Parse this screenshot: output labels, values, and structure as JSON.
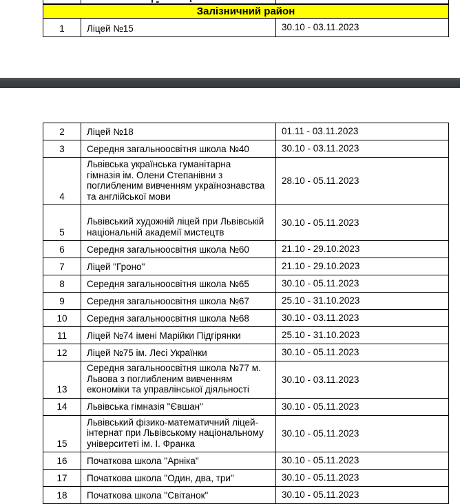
{
  "district": {
    "header": "Залізничний район"
  },
  "page1_rows": [
    {
      "num": "1",
      "name": "Ліцей №15",
      "dates": "30.10 - 03.11.2023"
    }
  ],
  "page2_rows": [
    {
      "num": "2",
      "name": "Ліцей №18",
      "dates": "01.11 - 03.11.2023"
    },
    {
      "num": "3",
      "name": "Середня загальноосвітня школа №40",
      "dates": "30.10 - 03.11.2023"
    },
    {
      "num": "4",
      "name": "Львівська українська гуманітарна гімназія ім. Олени Степанівни з поглибленим вивченням українознавства та англійської мови",
      "dates": "28.10 - 05.11.2023"
    },
    {
      "num": "5",
      "name": "Львівський художній ліцей при Львівській національній академії мистецтв",
      "dates": "30.10 - 05.11.2023"
    },
    {
      "num": "6",
      "name": "Середня загальноосвітня школа №60",
      "dates": "21.10 - 29.10.2023"
    },
    {
      "num": "7",
      "name": "Ліцей \"Гроно\"",
      "dates": "21.10 - 29.10.2023"
    },
    {
      "num": "8",
      "name": "Середня загальноосвітня школа №65",
      "dates": "30.10 - 05.11.2023"
    },
    {
      "num": "9",
      "name": "Середня загальноосвітня школа №67",
      "dates": "25.10 - 31.10.2023"
    },
    {
      "num": "10",
      "name": "Середня загальноосвітня школа №68",
      "dates": "30.10 - 03.11.2023"
    },
    {
      "num": "11",
      "name": "Ліцей №74 імені Марійки Підгірянки",
      "dates": "25.10 - 31.10.2023"
    },
    {
      "num": "12",
      "name": "Ліцей №75 ім. Лесі Українки",
      "dates": "30.10 - 05.11.2023"
    },
    {
      "num": "13",
      "name": "Середня загальноосвітня школа №77 м. Львова з поглибленим вивченням економіки та управлінської діяльності",
      "dates": "30.10 - 03.11.2023"
    },
    {
      "num": "14",
      "name": "Львівська гімназія \"Євшан\"",
      "dates": "30.10 - 05.11.2023"
    },
    {
      "num": "15",
      "name": "Львівський фізико-математичний ліцей-інтернат при Львівському національному університеті ім. І. Франка",
      "dates": "30.10 - 05.11.2023"
    },
    {
      "num": "16",
      "name": "Початкова школа \"Арніка\"",
      "dates": "30.10 - 05.11.2023"
    },
    {
      "num": "17",
      "name": "Початкова школа \"Один, два, три\"",
      "dates": "30.10 - 05.11.2023"
    },
    {
      "num": "18",
      "name": "Початкова школа \"Світанок\"",
      "dates": "30.10 - 05.11.2023"
    }
  ],
  "colors": {
    "header_bg": "#ffff00",
    "table_border": "#000000",
    "separator_bar": "#3e4246",
    "page_bg": "#ffffff",
    "text": "#000000"
  }
}
